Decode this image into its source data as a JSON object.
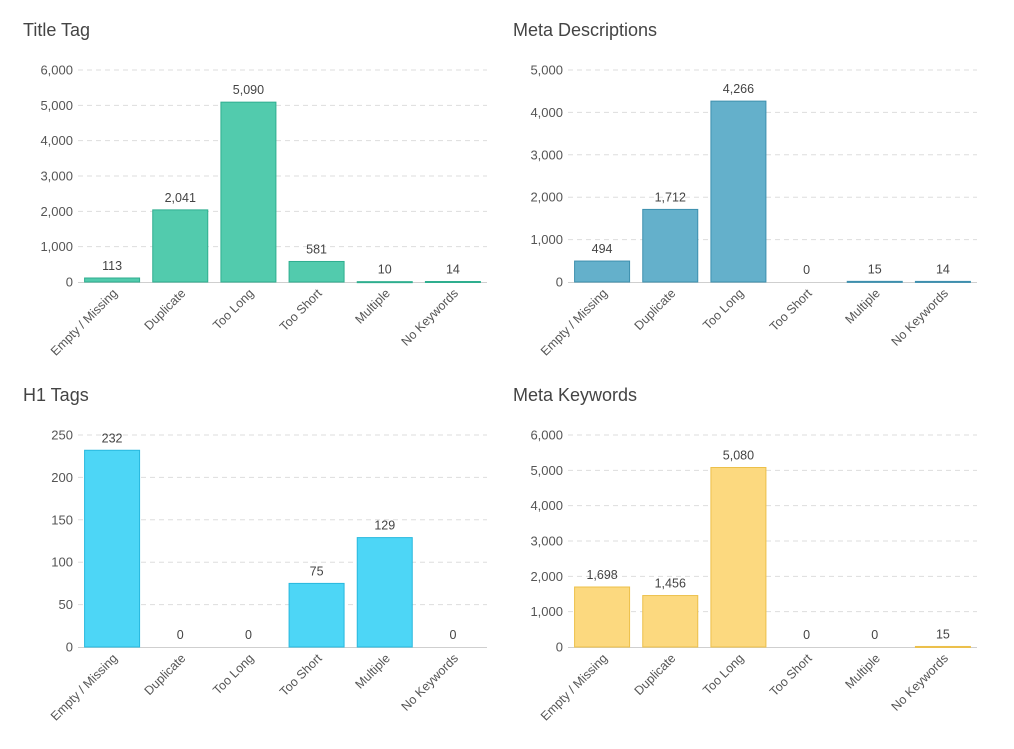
{
  "chart_data": [
    {
      "type": "bar",
      "title": "Title Tag",
      "categories": [
        "Empty / Missing",
        "Duplicate",
        "Too Long",
        "Too Short",
        "Multiple",
        "No Keywords"
      ],
      "values": [
        113,
        2041,
        5090,
        581,
        10,
        14
      ],
      "value_labels": [
        "113",
        "2,041",
        "5,090",
        "581",
        "10",
        "14"
      ],
      "yticks": [
        0,
        1000,
        2000,
        3000,
        4000,
        5000,
        6000
      ],
      "ytick_labels": [
        "0",
        "1,000",
        "2,000",
        "3,000",
        "4,000",
        "5,000",
        "6,000"
      ],
      "ylim": [
        0,
        6000
      ],
      "grid": true,
      "color": "#52cbad",
      "edge_color": "#2fae8f"
    },
    {
      "type": "bar",
      "title": "Meta Descriptions",
      "categories": [
        "Empty / Missing",
        "Duplicate",
        "Too Long",
        "Too Short",
        "Multiple",
        "No Keywords"
      ],
      "values": [
        494,
        1712,
        4266,
        0,
        15,
        14
      ],
      "value_labels": [
        "494",
        "1,712",
        "4,266",
        "0",
        "15",
        "14"
      ],
      "yticks": [
        0,
        1000,
        2000,
        3000,
        4000,
        5000
      ],
      "ytick_labels": [
        "0",
        "1,000",
        "2,000",
        "3,000",
        "4,000",
        "5,000"
      ],
      "ylim": [
        0,
        5000
      ],
      "grid": true,
      "color": "#64b0cb",
      "edge_color": "#3d8fae"
    },
    {
      "type": "bar",
      "title": "H1 Tags",
      "categories": [
        "Empty / Missing",
        "Duplicate",
        "Too Long",
        "Too Short",
        "Multiple",
        "No Keywords"
      ],
      "values": [
        232,
        0,
        0,
        75,
        129,
        0
      ],
      "value_labels": [
        "232",
        "0",
        "0",
        "75",
        "129",
        "0"
      ],
      "yticks": [
        0,
        50,
        100,
        150,
        200,
        250
      ],
      "ytick_labels": [
        "0",
        "50",
        "100",
        "150",
        "200",
        "250"
      ],
      "ylim": [
        0,
        250
      ],
      "grid": true,
      "color": "#4dd6f6",
      "edge_color": "#28b8de"
    },
    {
      "type": "bar",
      "title": "Meta Keywords",
      "categories": [
        "Empty / Missing",
        "Duplicate",
        "Too Long",
        "Too Short",
        "Multiple",
        "No Keywords"
      ],
      "values": [
        1698,
        1456,
        5080,
        0,
        0,
        15
      ],
      "value_labels": [
        "1,698",
        "1,456",
        "5,080",
        "0",
        "0",
        "15"
      ],
      "yticks": [
        0,
        1000,
        2000,
        3000,
        4000,
        5000,
        6000
      ],
      "ytick_labels": [
        "0",
        "1,000",
        "2,000",
        "3,000",
        "4,000",
        "5,000",
        "6,000"
      ],
      "ylim": [
        0,
        6000
      ],
      "grid": true,
      "color": "#fcd97f",
      "edge_color": "#ecc04a"
    }
  ]
}
